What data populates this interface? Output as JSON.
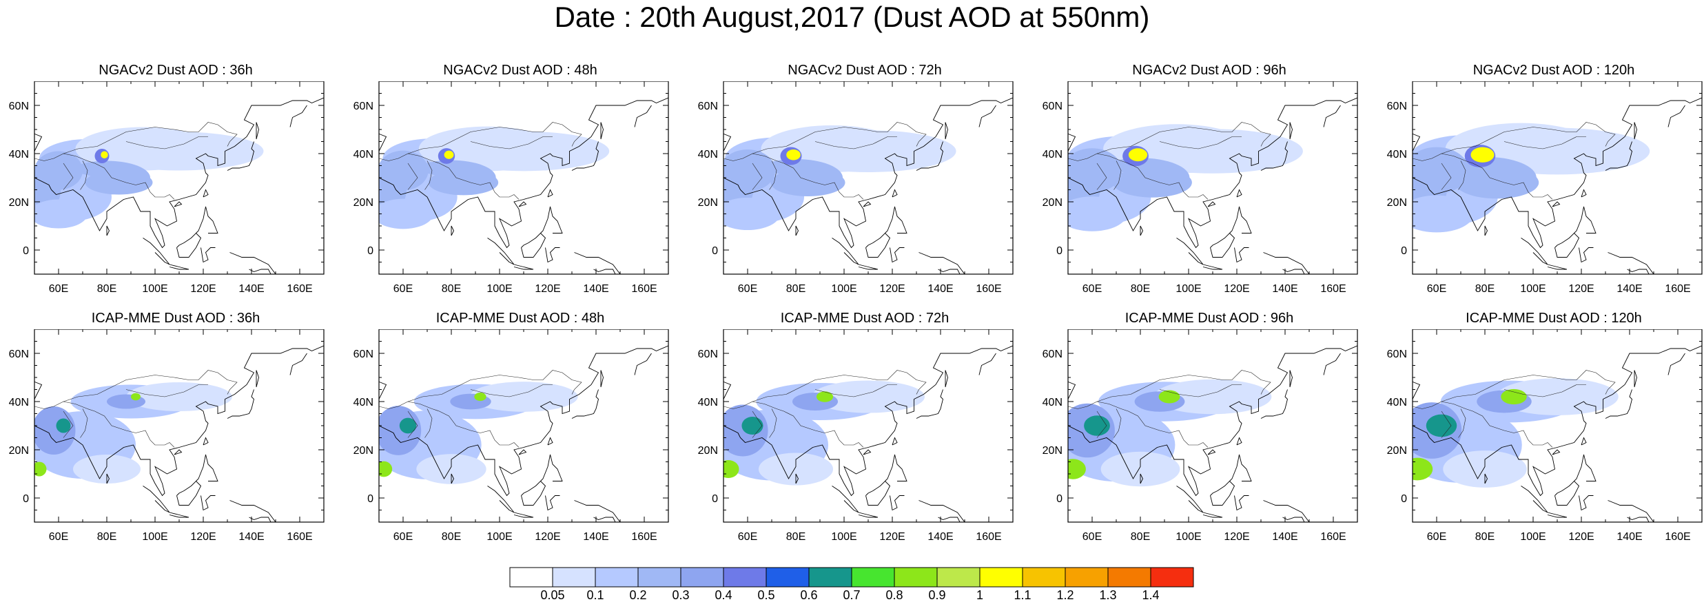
{
  "title": "Date : 20th August,2017 (Dust AOD at 550nm)",
  "panels": [
    {
      "title": "NGACv2 Dust AOD : 36h",
      "model": "NGACv2",
      "lead": "36h"
    },
    {
      "title": "NGACv2 Dust AOD : 48h",
      "model": "NGACv2",
      "lead": "48h"
    },
    {
      "title": "NGACv2 Dust AOD : 72h",
      "model": "NGACv2",
      "lead": "72h"
    },
    {
      "title": "NGACv2 Dust AOD : 96h",
      "model": "NGACv2",
      "lead": "96h"
    },
    {
      "title": "NGACv2 Dust AOD : 120h",
      "model": "NGACv2",
      "lead": "120h"
    },
    {
      "title": "ICAP-MME Dust AOD : 36h",
      "model": "ICAP-MME",
      "lead": "36h"
    },
    {
      "title": "ICAP-MME Dust AOD : 48h",
      "model": "ICAP-MME",
      "lead": "48h"
    },
    {
      "title": "ICAP-MME Dust AOD : 72h",
      "model": "ICAP-MME",
      "lead": "72h"
    },
    {
      "title": "ICAP-MME Dust AOD : 96h",
      "model": "ICAP-MME",
      "lead": "96h"
    },
    {
      "title": "ICAP-MME Dust AOD : 120h",
      "model": "ICAP-MME",
      "lead": "120h"
    }
  ],
  "map_extent": {
    "lon": [
      50,
      170
    ],
    "lat": [
      -10,
      70
    ]
  },
  "lon_ticks": [
    {
      "value": 60,
      "label": "60E"
    },
    {
      "value": 80,
      "label": "80E"
    },
    {
      "value": 100,
      "label": "100E"
    },
    {
      "value": 120,
      "label": "120E"
    },
    {
      "value": 140,
      "label": "140E"
    },
    {
      "value": 160,
      "label": "160E"
    }
  ],
  "lat_ticks": [
    {
      "value": 0,
      "label": "0"
    },
    {
      "value": 20,
      "label": "20N"
    },
    {
      "value": 40,
      "label": "40N"
    },
    {
      "value": 60,
      "label": "60N"
    }
  ],
  "colorbar": {
    "levels": [
      "0.05",
      "0.1",
      "0.2",
      "0.3",
      "0.4",
      "0.5",
      "0.6",
      "0.7",
      "0.8",
      "0.9",
      "1",
      "1.1",
      "1.2",
      "1.3",
      "1.4"
    ],
    "colors": [
      "#ffffff",
      "#d6e2ff",
      "#b5c9ff",
      "#a0b8f5",
      "#8ea5f0",
      "#6e7ae8",
      "#1f5fe8",
      "#16968c",
      "#47e52f",
      "#8de61a",
      "#bde84a",
      "#ffff00",
      "#f7c300",
      "#f7a100",
      "#f47a00",
      "#f52e0f"
    ]
  }
}
